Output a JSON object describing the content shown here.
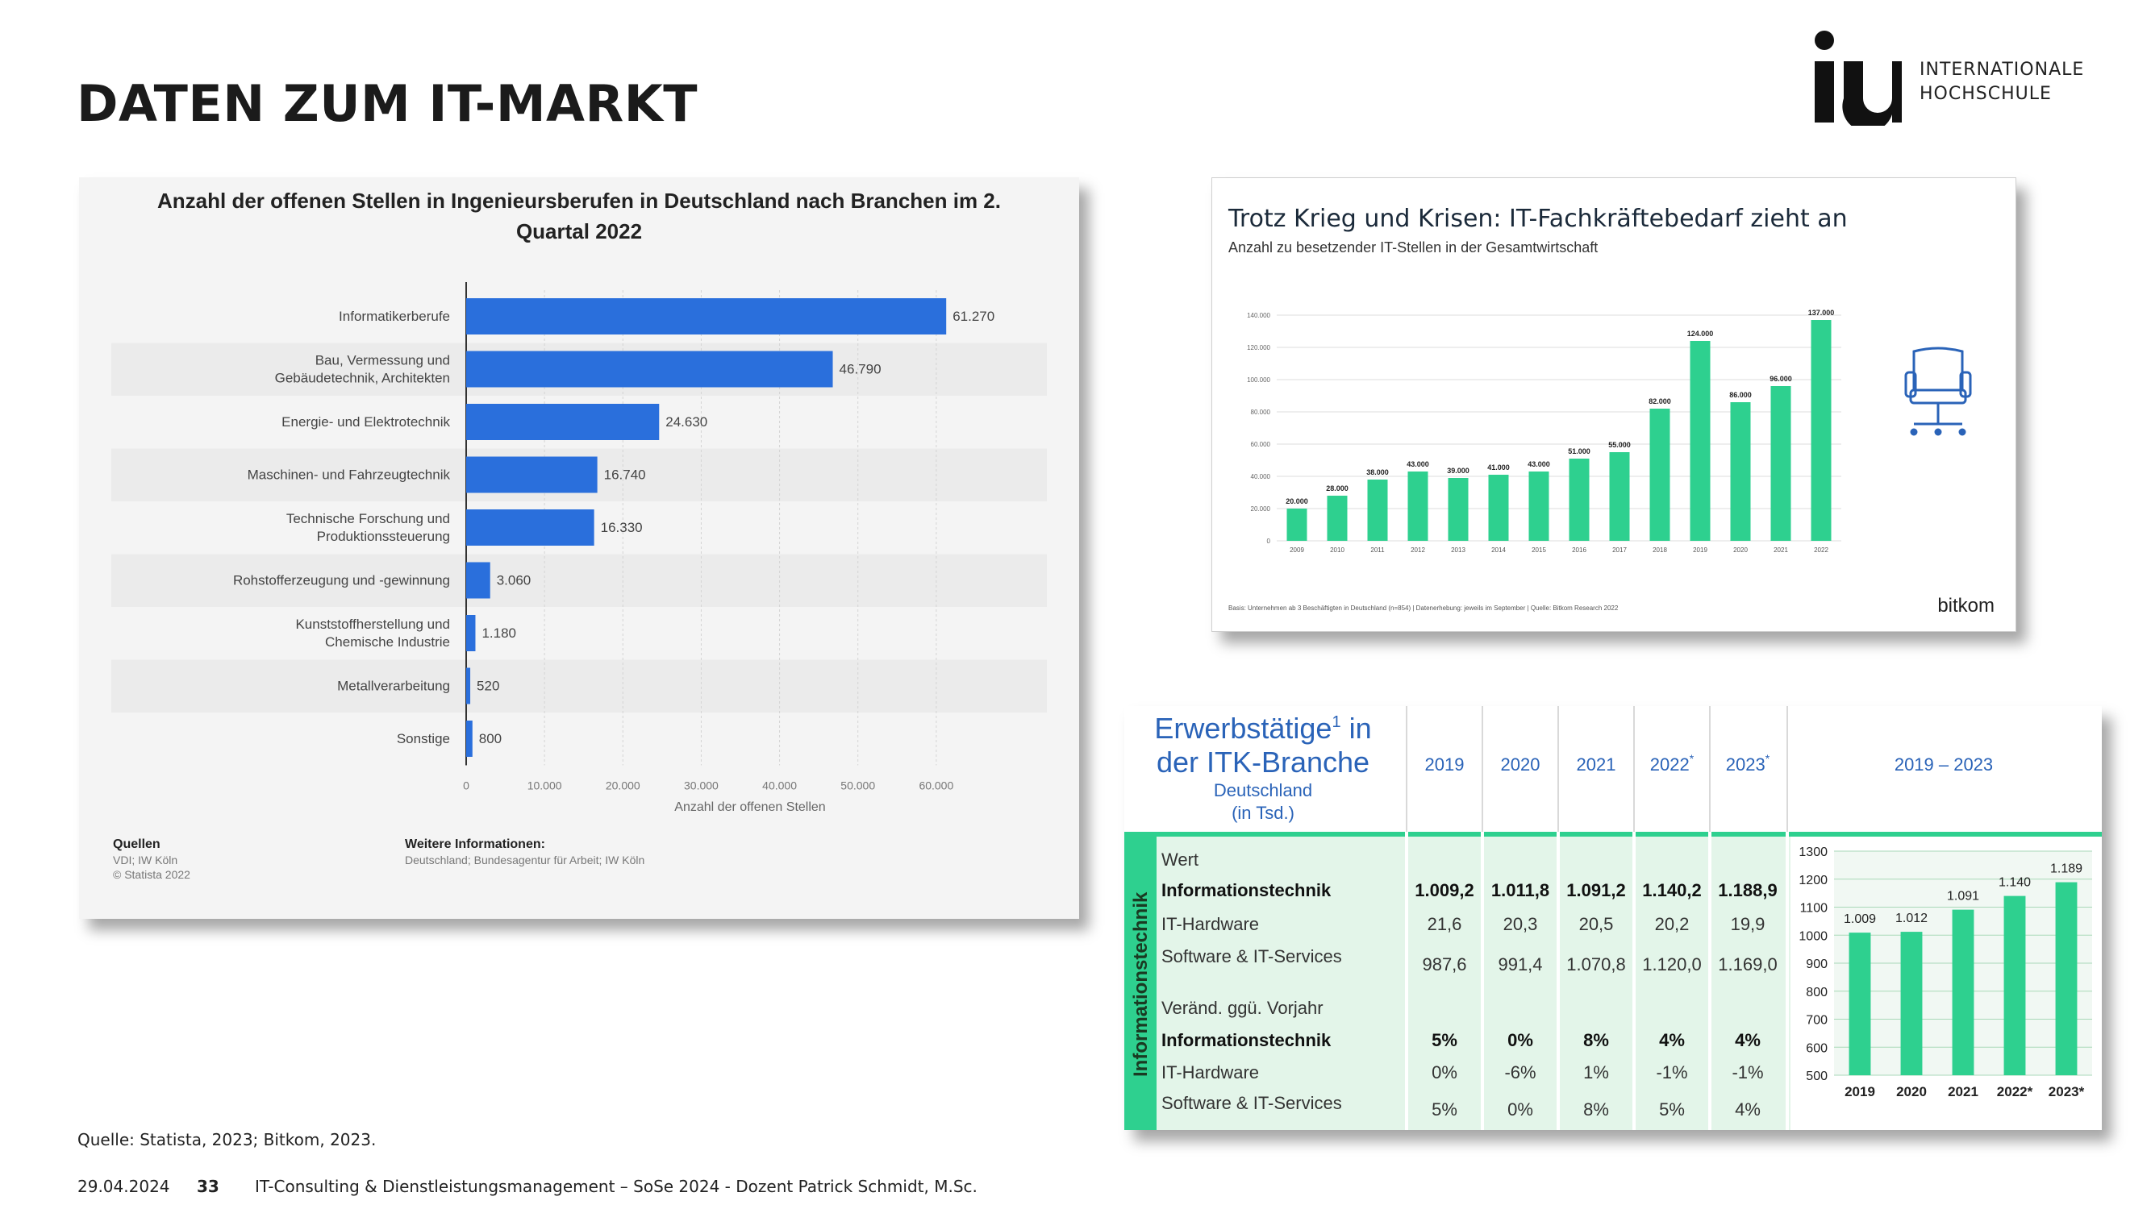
{
  "slide": {
    "title": "DATEN ZUM IT-MARKT",
    "logo_mark": "iu",
    "logo_line1": "INTERNATIONALE",
    "logo_line2": "HOCHSCHULE",
    "source": "Quelle: Statista, 2023; Bitkom, 2023.",
    "date": "29.04.2024",
    "page_number": "33",
    "course": "IT-Consulting & Dienstleistungsmanagement – SoSe 2024 - Dozent Patrick Schmidt, M.Sc."
  },
  "statista": {
    "title_line1": "Anzahl der offenen Stellen in Ingenieursberufen in Deutschland nach Branchen im 2.",
    "title_line2": "Quartal 2022",
    "xlabel": "Anzahl der offenen Stellen",
    "sources_heading": "Quellen",
    "sources_line1": "VDI; IW Köln",
    "sources_line2": "© Statista 2022",
    "info_heading": "Weitere Informationen:",
    "info_text": "Deutschland; Bundesagentur für Arbeit; IW Köln"
  },
  "bitkom": {
    "title": "Trotz Krieg und Krisen: IT-Fachkräftebedarf zieht an",
    "subtitle": "Anzahl zu besetzender IT-Stellen in der Gesamtwirtschaft",
    "footnote": "Basis: Unternehmen ab 3 Beschäftigten in Deutschland (n=854) | Datenerhebung: jeweils im September | Quelle: Bitkom Research 2022",
    "brand": "bitkom",
    "icon": "office-chair-icon"
  },
  "itk": {
    "title_line1": "Erwerbstätige",
    "title_sup": "1",
    "title_line1_end": " in",
    "title_line2": "der ITK-Branche",
    "title_line3": "Deutschland",
    "title_line4": "(in Tsd.)",
    "side_label": "Informationstechnik",
    "headers": [
      "2019",
      "2020",
      "2021",
      "2022*",
      "2023*"
    ],
    "range_header": "2019 – 2023",
    "section1_label": "Wert",
    "section2_label": "Veränd. ggü. Vorjahr",
    "rows_value": [
      {
        "label": "Informationstechnik",
        "bold": true,
        "cells": [
          "1.009,2",
          "1.011,8",
          "1.091,2",
          "1.140,2",
          "1.188,9"
        ]
      },
      {
        "label": "IT-Hardware",
        "bold": false,
        "cells": [
          "21,6",
          "20,3",
          "20,5",
          "20,2",
          "19,9"
        ]
      },
      {
        "label": "Software & IT-Services",
        "bold": false,
        "cells": [
          "987,6",
          "991,4",
          "1.070,8",
          "1.120,0",
          "1.169,0"
        ]
      }
    ],
    "rows_change": [
      {
        "label": "Informationstechnik",
        "bold": true,
        "cells": [
          "5%",
          "0%",
          "8%",
          "4%",
          "4%"
        ]
      },
      {
        "label": "IT-Hardware",
        "bold": false,
        "cells": [
          "0%",
          "-6%",
          "1%",
          "-1%",
          "-1%"
        ]
      },
      {
        "label": "Software & IT-Services",
        "bold": false,
        "cells": [
          "5%",
          "0%",
          "8%",
          "5%",
          "4%"
        ]
      }
    ],
    "colors": {
      "green": "#2ed08f",
      "header_blue": "#2a63b8",
      "row_bg": "#e3f5e9"
    }
  },
  "chart_data": [
    {
      "type": "bar",
      "orientation": "horizontal",
      "title": "Anzahl der offenen Stellen in Ingenieursberufen in Deutschland nach Branchen im 2. Quartal 2022",
      "xlabel": "Anzahl der offenen Stellen",
      "ylabel": "",
      "categories": [
        [
          "Informatikerberufe"
        ],
        [
          "Bau, Vermessung und",
          "Gebäudetechnik, Architekten"
        ],
        [
          "Energie- und Elektrotechnik"
        ],
        [
          "Maschinen- und Fahrzeugtechnik"
        ],
        [
          "Technische Forschung und",
          "Produktionssteuerung"
        ],
        [
          "Rohstofferzeugung und -gewinnung"
        ],
        [
          "Kunststoffherstellung und",
          "Chemische Industrie"
        ],
        [
          "Metallverarbeitung"
        ],
        [
          "Sonstige"
        ]
      ],
      "values": [
        61270,
        46790,
        24630,
        16740,
        16330,
        3060,
        1180,
        520,
        800
      ],
      "value_labels": [
        "61.270",
        "46.790",
        "24.630",
        "16.740",
        "16.330",
        "3.060",
        "1.180",
        "520",
        "800"
      ],
      "xlim": [
        0,
        70000
      ],
      "xticks": [
        0,
        10000,
        20000,
        30000,
        40000,
        50000,
        60000
      ],
      "xtick_labels": [
        "0",
        "10.000",
        "20.000",
        "30.000",
        "40.000",
        "50.000",
        "60.000"
      ],
      "color": "#2a6fdc",
      "grid": true
    },
    {
      "type": "bar",
      "title": "Trotz Krieg und Krisen: IT-Fachkräftebedarf zieht an",
      "categories": [
        "2009",
        "2010",
        "2011",
        "2012",
        "2013",
        "2014",
        "2015",
        "2016",
        "2017",
        "2018",
        "2019",
        "2020",
        "2021",
        "2022"
      ],
      "values": [
        20000,
        28000,
        38000,
        43000,
        39000,
        41000,
        43000,
        51000,
        55000,
        82000,
        124000,
        86000,
        96000,
        137000
      ],
      "value_labels": [
        "20.000",
        "28.000",
        "38.000",
        "43.000",
        "39.000",
        "41.000",
        "43.000",
        "51.000",
        "55.000",
        "82.000",
        "124.000",
        "86.000",
        "96.000",
        "137.000"
      ],
      "ylim": [
        0,
        140000
      ],
      "yticks": [
        0,
        20000,
        40000,
        60000,
        80000,
        100000,
        120000,
        140000
      ],
      "ytick_labels": [
        "0",
        "20.000",
        "40.000",
        "60.000",
        "80.000",
        "100.000",
        "120.000",
        "140.000"
      ],
      "color": "#2ed08f",
      "grid": true
    },
    {
      "type": "bar",
      "categories": [
        "2019",
        "2020",
        "2021",
        "2022*",
        "2023*"
      ],
      "values": [
        1009,
        1012,
        1091,
        1140,
        1189
      ],
      "value_labels": [
        "1.009",
        "1.012",
        "1.091",
        "1.140",
        "1.189"
      ],
      "ylim": [
        500,
        1300
      ],
      "yticks": [
        500,
        600,
        700,
        800,
        900,
        1000,
        1100,
        1200,
        1300
      ],
      "ytick_labels": [
        "500",
        "600",
        "700",
        "800",
        "900",
        "1000",
        "1100",
        "1200",
        "1300"
      ],
      "color": "#2ed08f",
      "grid": true
    }
  ]
}
